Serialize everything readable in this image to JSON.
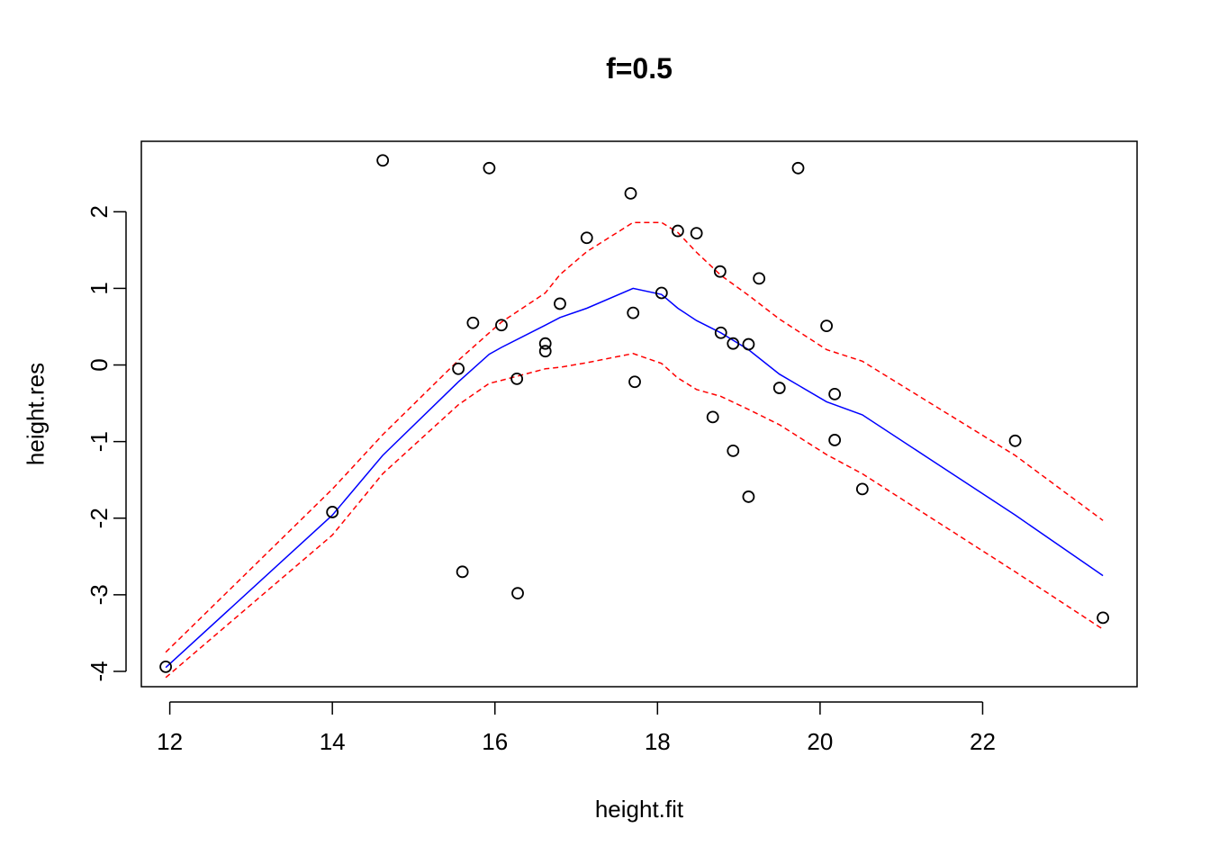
{
  "chart_data": {
    "type": "scatter",
    "title": "f=0.5",
    "xlabel": "height.fit",
    "ylabel": "height.res",
    "xlim": [
      11.65,
      23.9
    ],
    "ylim": [
      -4.2,
      2.92
    ],
    "x_ticks": [
      12,
      14,
      16,
      18,
      20,
      22
    ],
    "x_tick_labels": [
      "12",
      "14",
      "16",
      "18",
      "20",
      "22"
    ],
    "y_ticks": [
      -4,
      -3,
      -2,
      -1,
      0,
      1,
      2
    ],
    "y_tick_labels": [
      "-4",
      "-3",
      "-2",
      "-1",
      "0",
      "1",
      "2"
    ],
    "grid": false,
    "colors": {
      "points": "#000000",
      "smooth": "#0000ff",
      "band": "#ff0000"
    },
    "points": [
      {
        "x": 11.95,
        "y": -3.94
      },
      {
        "x": 14.0,
        "y": -1.92
      },
      {
        "x": 14.62,
        "y": 2.67
      },
      {
        "x": 15.55,
        "y": -0.05
      },
      {
        "x": 15.6,
        "y": -2.7
      },
      {
        "x": 15.73,
        "y": 0.55
      },
      {
        "x": 15.93,
        "y": 2.57
      },
      {
        "x": 16.08,
        "y": 0.52
      },
      {
        "x": 16.27,
        "y": -0.18
      },
      {
        "x": 16.28,
        "y": -2.98
      },
      {
        "x": 16.62,
        "y": 0.28
      },
      {
        "x": 16.62,
        "y": 0.18
      },
      {
        "x": 16.8,
        "y": 0.8
      },
      {
        "x": 17.13,
        "y": 1.66
      },
      {
        "x": 17.67,
        "y": 2.24
      },
      {
        "x": 17.7,
        "y": 0.68
      },
      {
        "x": 17.72,
        "y": -0.22
      },
      {
        "x": 18.05,
        "y": 0.94
      },
      {
        "x": 18.25,
        "y": 1.75
      },
      {
        "x": 18.48,
        "y": 1.72
      },
      {
        "x": 18.68,
        "y": -0.68
      },
      {
        "x": 18.77,
        "y": 1.22
      },
      {
        "x": 18.78,
        "y": 0.42
      },
      {
        "x": 18.93,
        "y": 0.28
      },
      {
        "x": 18.93,
        "y": -1.12
      },
      {
        "x": 19.12,
        "y": 0.27
      },
      {
        "x": 19.12,
        "y": -1.72
      },
      {
        "x": 19.25,
        "y": 1.13
      },
      {
        "x": 19.5,
        "y": -0.3
      },
      {
        "x": 19.73,
        "y": 2.57
      },
      {
        "x": 20.08,
        "y": 0.51
      },
      {
        "x": 20.18,
        "y": -0.38
      },
      {
        "x": 20.18,
        "y": -0.98
      },
      {
        "x": 20.52,
        "y": -1.62
      },
      {
        "x": 22.4,
        "y": -0.99
      },
      {
        "x": 23.48,
        "y": -3.3
      }
    ],
    "series": [
      {
        "style": "solid",
        "color": "#0000ff",
        "x": [
          11.95,
          14.0,
          14.62,
          15.55,
          15.93,
          16.08,
          16.62,
          16.8,
          17.13,
          17.7,
          18.05,
          18.25,
          18.48,
          18.78,
          19.12,
          19.5,
          20.08,
          20.52,
          22.4,
          23.48
        ],
        "y": [
          -3.95,
          -1.96,
          -1.18,
          -0.22,
          0.14,
          0.23,
          0.52,
          0.62,
          0.74,
          1.0,
          0.92,
          0.74,
          0.58,
          0.42,
          0.2,
          -0.12,
          -0.48,
          -0.65,
          -1.96,
          -2.75
        ]
      },
      {
        "style": "dashed",
        "color": "#ff0000",
        "x": [
          11.95,
          14.0,
          14.62,
          15.55,
          15.93,
          16.08,
          16.62,
          16.8,
          17.13,
          17.7,
          18.05,
          18.25,
          18.48,
          18.78,
          19.12,
          19.5,
          20.08,
          20.52,
          22.4,
          23.48
        ],
        "y": [
          -3.75,
          -1.62,
          -0.91,
          0.06,
          0.42,
          0.56,
          0.94,
          1.18,
          1.48,
          1.86,
          1.86,
          1.73,
          1.47,
          1.17,
          0.91,
          0.6,
          0.2,
          0.05,
          -1.18,
          -2.03
        ]
      },
      {
        "style": "dashed",
        "color": "#ff0000",
        "x": [
          11.95,
          14.0,
          14.62,
          15.55,
          15.93,
          16.08,
          16.62,
          16.8,
          17.13,
          17.7,
          18.05,
          18.25,
          18.48,
          18.78,
          19.12,
          19.5,
          20.08,
          20.52,
          22.4,
          23.48
        ],
        "y": [
          -4.08,
          -2.22,
          -1.42,
          -0.52,
          -0.24,
          -0.2,
          -0.05,
          -0.03,
          0.03,
          0.15,
          0.02,
          -0.17,
          -0.32,
          -0.41,
          -0.58,
          -0.78,
          -1.17,
          -1.42,
          -2.7,
          -3.45
        ]
      }
    ]
  }
}
